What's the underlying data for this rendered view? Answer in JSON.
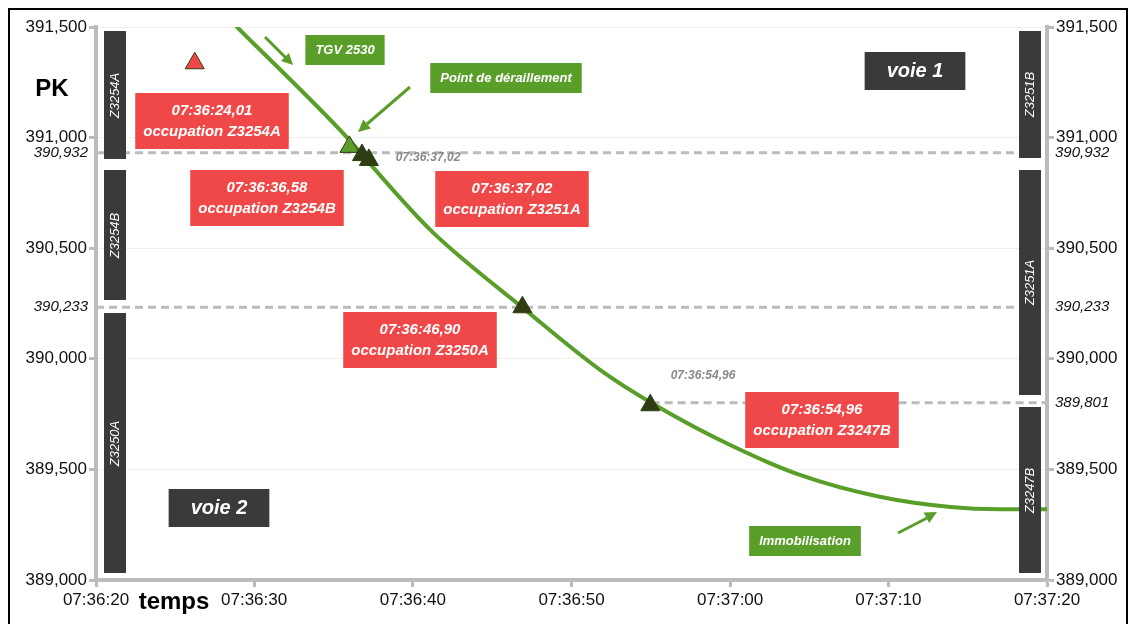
{
  "chart_data": {
    "type": "line",
    "xlabel": "temps",
    "ylabel": "PK",
    "series": [
      {
        "color": "#5a9e2a",
        "marker": "none",
        "x": [
          7.60803,
          7.61,
          7.61033,
          7.61142,
          7.61308,
          7.61439,
          7.61536,
          7.61667,
          7.61789,
          7.61931,
          7.62053,
          7.62139,
          7.62222
        ],
        "values": [
          391500,
          390989,
          390890,
          390582,
          390221,
          389950,
          389790,
          389610,
          389475,
          389375,
          389330,
          389320,
          389320
        ]
      },
      {
        "type": "scatter",
        "color": "#2f3d14",
        "colors": [
          "#f04848",
          "#5a9e2a",
          "#2f3d14",
          "#2f3d14",
          "#2f3d14",
          "#2f3d14"
        ],
        "marker": "triangle",
        "x": [
          7.60729,
          7.61,
          7.61022,
          7.61034,
          7.61303,
          7.61527
        ],
        "values": [
          391336,
          390958,
          390921,
          390899,
          390233,
          389790
        ]
      }
    ],
    "xlim": [
      7.60556,
      7.62222
    ],
    "xticks": [
      {
        "value": 7.60556,
        "label": "07:36:20"
      },
      {
        "value": 7.60833,
        "label": "07:36:30"
      },
      {
        "value": 7.61111,
        "label": "07:36:40"
      },
      {
        "value": 7.61389,
        "label": "07:36:50"
      },
      {
        "value": 7.61667,
        "label": "07:37:00"
      },
      {
        "value": 7.61944,
        "label": "07:37:10"
      },
      {
        "value": 7.62222,
        "label": "07:37:20"
      }
    ],
    "ylim": [
      389000,
      391500
    ],
    "yticks": [
      {
        "value": 389000,
        "label": "389,000"
      },
      {
        "value": 389500,
        "label": "389,500"
      },
      {
        "value": 390000,
        "label": "390,000"
      },
      {
        "value": 390500,
        "label": "390,500"
      },
      {
        "value": 391000,
        "label": "391,000"
      },
      {
        "value": 391500,
        "label": "391,500"
      }
    ],
    "y2lim": [
      389000,
      391500
    ],
    "y2ticks": [
      {
        "value": 389000,
        "label": "389,000"
      },
      {
        "value": 389500,
        "label": "389,500"
      },
      {
        "value": 390000,
        "label": "390,000"
      },
      {
        "value": 390500,
        "label": "390,500"
      },
      {
        "value": 391000,
        "label": "391,000"
      },
      {
        "value": 391500,
        "label": "391,500"
      }
    ],
    "grid": "y",
    "legend": false,
    "ref_lines": [
      {
        "axis": "y",
        "value": 390932,
        "label": "390,932",
        "color": "#bbbbbb",
        "line_style": "dashed"
      },
      {
        "axis": "y",
        "value": 390233,
        "label": "390,233",
        "color": "#bbbbbb",
        "line_style": "dashed"
      },
      {
        "axis": "y2",
        "value": 389801,
        "label": "389,801",
        "color": "#bbbbbb",
        "line_style": "dashed"
      }
    ],
    "annotations": [
      "07:36:24,01\noccupation Z3254A",
      "07:36:36,58\noccupation Z3254B",
      "07:36:37,02\noccupation Z3251A",
      "07:36:46,90\noccupation Z3250A",
      "07:36:54,96\noccupation Z3247B",
      "TGV 2530",
      "Point de déraillement",
      "Immobilisation",
      "voie 1",
      "voie 2",
      "07:36:37,02",
      "07:36:54,96",
      "Z3254A",
      "Z3254B",
      "Z3250A",
      "Z3251B",
      "Z3251A",
      "Z3247B"
    ]
  }
}
